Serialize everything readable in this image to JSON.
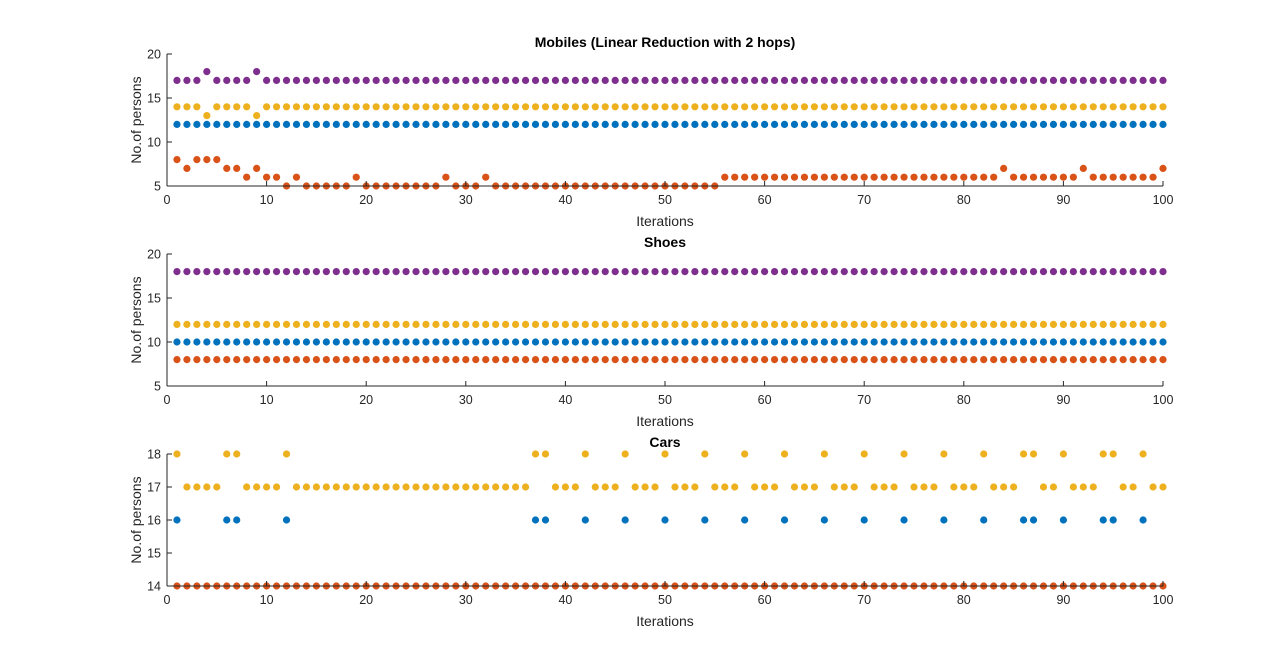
{
  "chart_data": [
    {
      "type": "scatter",
      "title": "Mobiles (Linear Reduction with 2 hops)",
      "xlabel": "Iterations",
      "ylabel": "No.of persons",
      "xlim": [
        0,
        100
      ],
      "ylim": [
        5,
        20
      ],
      "xticks": [
        0,
        10,
        20,
        30,
        40,
        50,
        60,
        70,
        80,
        90,
        100
      ],
      "yticks": [
        5,
        10,
        15,
        20
      ],
      "grid": false,
      "series": [
        {
          "color": "#0072BD",
          "x_range": [
            1,
            100
          ],
          "y": [
            12,
            12,
            12,
            12,
            12,
            12,
            12,
            12,
            12,
            12,
            12,
            12,
            12,
            12,
            12,
            12,
            12,
            12,
            12,
            12,
            12,
            12,
            12,
            12,
            12,
            12,
            12,
            12,
            12,
            12,
            12,
            12,
            12,
            12,
            12,
            12,
            12,
            12,
            12,
            12,
            12,
            12,
            12,
            12,
            12,
            12,
            12,
            12,
            12,
            12,
            12,
            12,
            12,
            12,
            12,
            12,
            12,
            12,
            12,
            12,
            12,
            12,
            12,
            12,
            12,
            12,
            12,
            12,
            12,
            12,
            12,
            12,
            12,
            12,
            12,
            12,
            12,
            12,
            12,
            12,
            12,
            12,
            12,
            12,
            12,
            12,
            12,
            12,
            12,
            12,
            12,
            12,
            12,
            12,
            12,
            12,
            12,
            12,
            12,
            12
          ]
        },
        {
          "color": "#D95319",
          "x_range": [
            1,
            100
          ],
          "y": [
            8,
            7,
            8,
            8,
            8,
            7,
            7,
            6,
            7,
            6,
            6,
            5,
            6,
            5,
            5,
            5,
            5,
            5,
            6,
            5,
            5,
            5,
            5,
            5,
            5,
            5,
            5,
            6,
            5,
            5,
            5,
            6,
            5,
            5,
            5,
            5,
            5,
            5,
            5,
            5,
            5,
            5,
            5,
            5,
            5,
            5,
            5,
            5,
            5,
            5,
            5,
            5,
            5,
            5,
            5,
            6,
            6,
            6,
            6,
            6,
            6,
            6,
            6,
            6,
            6,
            6,
            6,
            6,
            6,
            6,
            6,
            6,
            6,
            6,
            6,
            6,
            6,
            6,
            6,
            6,
            6,
            6,
            6,
            7,
            6,
            6,
            6,
            6,
            6,
            6,
            6,
            7,
            6,
            6,
            6,
            6,
            6,
            6,
            6,
            7
          ]
        },
        {
          "color": "#EDB120",
          "x_range": [
            1,
            100
          ],
          "y": [
            14,
            14,
            14,
            13,
            14,
            14,
            14,
            14,
            13,
            14,
            14,
            14,
            14,
            14,
            14,
            14,
            14,
            14,
            14,
            14,
            14,
            14,
            14,
            14,
            14,
            14,
            14,
            14,
            14,
            14,
            14,
            14,
            14,
            14,
            14,
            14,
            14,
            14,
            14,
            14,
            14,
            14,
            14,
            14,
            14,
            14,
            14,
            14,
            14,
            14,
            14,
            14,
            14,
            14,
            14,
            14,
            14,
            14,
            14,
            14,
            14,
            14,
            14,
            14,
            14,
            14,
            14,
            14,
            14,
            14,
            14,
            14,
            14,
            14,
            14,
            14,
            14,
            14,
            14,
            14,
            14,
            14,
            14,
            14,
            14,
            14,
            14,
            14,
            14,
            14,
            14,
            14,
            14,
            14,
            14,
            14,
            14,
            14,
            14,
            14
          ]
        },
        {
          "color": "#7E2F8E",
          "x_range": [
            1,
            100
          ],
          "y": [
            17,
            17,
            17,
            18,
            17,
            17,
            17,
            17,
            18,
            17,
            17,
            17,
            17,
            17,
            17,
            17,
            17,
            17,
            17,
            17,
            17,
            17,
            17,
            17,
            17,
            17,
            17,
            17,
            17,
            17,
            17,
            17,
            17,
            17,
            17,
            17,
            17,
            17,
            17,
            17,
            17,
            17,
            17,
            17,
            17,
            17,
            17,
            17,
            17,
            17,
            17,
            17,
            17,
            17,
            17,
            17,
            17,
            17,
            17,
            17,
            17,
            17,
            17,
            17,
            17,
            17,
            17,
            17,
            17,
            17,
            17,
            17,
            17,
            17,
            17,
            17,
            17,
            17,
            17,
            17,
            17,
            17,
            17,
            17,
            17,
            17,
            17,
            17,
            17,
            17,
            17,
            17,
            17,
            17,
            17,
            17,
            17,
            17,
            17,
            17
          ]
        }
      ]
    },
    {
      "type": "scatter",
      "title": "Shoes",
      "xlabel": "Iterations",
      "ylabel": "No.of persons",
      "xlim": [
        0,
        100
      ],
      "ylim": [
        5,
        20
      ],
      "xticks": [
        0,
        10,
        20,
        30,
        40,
        50,
        60,
        70,
        80,
        90,
        100
      ],
      "yticks": [
        5,
        10,
        15,
        20
      ],
      "grid": false,
      "series": [
        {
          "color": "#0072BD",
          "x_range": [
            1,
            100
          ],
          "constant": 10
        },
        {
          "color": "#D95319",
          "x_range": [
            1,
            100
          ],
          "constant": 8
        },
        {
          "color": "#EDB120",
          "x_range": [
            1,
            100
          ],
          "constant": 12
        },
        {
          "color": "#7E2F8E",
          "x_range": [
            1,
            100
          ],
          "constant": 18
        }
      ]
    },
    {
      "type": "scatter",
      "title": "Cars",
      "xlabel": "Iterations",
      "ylabel": "No.of persons",
      "xlim": [
        0,
        100
      ],
      "ylim": [
        14,
        18
      ],
      "xticks": [
        0,
        10,
        20,
        30,
        40,
        50,
        60,
        70,
        80,
        90,
        100
      ],
      "yticks": [
        14,
        15,
        16,
        17,
        18
      ],
      "grid": false,
      "series": [
        {
          "color": "#0072BD",
          "x": [
            1,
            6,
            7,
            12,
            37,
            38,
            42,
            46,
            50,
            54,
            58,
            62,
            66,
            70,
            74,
            78,
            82,
            86,
            87,
            90,
            94,
            95,
            98
          ],
          "y": [
            16,
            16,
            16,
            16,
            16,
            16,
            16,
            16,
            16,
            16,
            16,
            16,
            16,
            16,
            16,
            16,
            16,
            16,
            16,
            16,
            16,
            16,
            16
          ]
        },
        {
          "color": "#D95319",
          "x_range": [
            1,
            100
          ],
          "constant": 14
        },
        {
          "color": "#EDB120",
          "x_range": [
            1,
            100
          ],
          "y": [
            18,
            17,
            17,
            17,
            17,
            18,
            18,
            17,
            17,
            17,
            17,
            18,
            17,
            17,
            17,
            17,
            17,
            17,
            17,
            17,
            17,
            17,
            17,
            17,
            17,
            17,
            17,
            17,
            17,
            17,
            17,
            17,
            17,
            17,
            17,
            17,
            18,
            18,
            17,
            17,
            17,
            18,
            17,
            17,
            17,
            18,
            17,
            17,
            17,
            18,
            17,
            17,
            17,
            18,
            17,
            17,
            17,
            18,
            17,
            17,
            17,
            18,
            17,
            17,
            17,
            18,
            17,
            17,
            17,
            18,
            17,
            17,
            17,
            18,
            17,
            17,
            17,
            18,
            17,
            17,
            17,
            18,
            17,
            17,
            17,
            18,
            18,
            17,
            17,
            18,
            17,
            17,
            17,
            18,
            18,
            17,
            17,
            18,
            17,
            17
          ]
        },
        {
          "color": "#7E2F8E",
          "x": [],
          "y": []
        }
      ]
    }
  ]
}
